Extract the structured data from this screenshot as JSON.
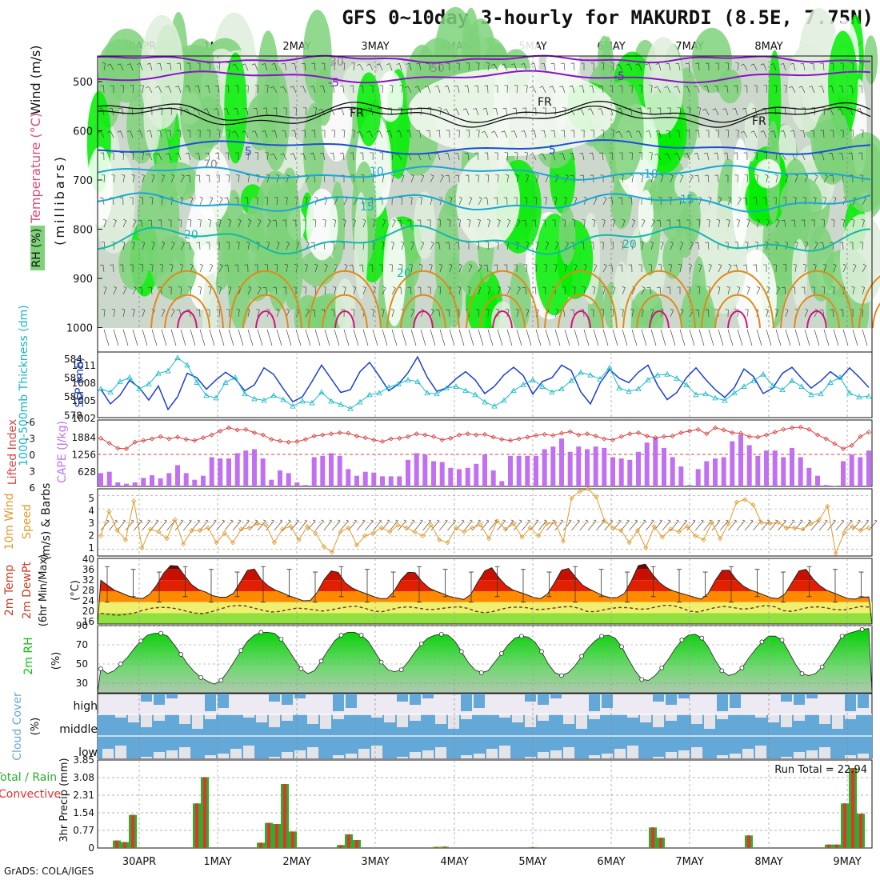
{
  "title": "GFS 0~10day 3-hourly for MAKURDI (8.5E, 7.75N)",
  "footer": "GrADS: COLA/IGES",
  "dates": [
    "30APR",
    "1MAY",
    "2MAY",
    "3MAY",
    "4MAY",
    "5MAY",
    "6MAY",
    "7MAY",
    "8MAY",
    "9MAY"
  ],
  "colors": {
    "rh_light": "#dfeedd",
    "rh_mid": "#cdd8cd",
    "rh_green": "#7ed27a",
    "rh_bright": "#00ee00",
    "temp_purple": "#8a12c8",
    "temp_blue": "#1a4fd6",
    "temp_cyan": "#1aa6d6",
    "temp_teal": "#14b8a8",
    "temp_orange": "#e08a1a",
    "temp_magenta": "#d0127a",
    "slp": "#1a3fd0",
    "thickness": "#16b8c8",
    "li": "#d84040",
    "cape": "#c070f0",
    "wind10": "#e09a2a",
    "temp2m_dark": "#7a0000",
    "temp2m_red": "#e02000",
    "temp2m_orange": "#ff8a00",
    "dewpt_yellow": "#f0f060",
    "rh2m": "#10c010",
    "cloud": "#64a8d8",
    "cloud_bg": "#eeeaf4",
    "precip_total": "#2ab02a",
    "precip_conv": "#e83030"
  },
  "panels": {
    "upper": {
      "ylabel_main": "(millibars)",
      "legend_rh": "RH (%)",
      "legend_temp": "Temperature (°C)",
      "legend_wind": "Wind (m/s)",
      "ticks": [
        "500",
        "600",
        "700",
        "800",
        "900",
        "1000"
      ],
      "contour_labels": {
        "m5a": "-5",
        "m5b": "-5",
        "fr1": "FR",
        "fr2": "FR",
        "fr3": "FR",
        "p5a": "5",
        "p5b": "5",
        "p10a": "10",
        "p10b": "10",
        "p15a": "15",
        "p15b": "15",
        "p20a": "20",
        "p20b": "20",
        "p20c": "20",
        "rh30": "30",
        "rh50": "50",
        "rh70": "70"
      }
    },
    "slp": {
      "ylabel_left": "1000-500mb Thickness (dm)",
      "ylabel_right": "SLP (mb)",
      "left_ticks": [
        "584",
        "582",
        "580",
        "578"
      ],
      "right_ticks": [
        "1011",
        "1008",
        "1005",
        "1002"
      ]
    },
    "cape": {
      "ylabel_left": "Lifted Index",
      "ylabel_right": "CAPE (J/kg)",
      "left_ticks": [
        "-6",
        "-3",
        "0",
        "3",
        "6"
      ],
      "right_ticks": [
        "1884",
        "1256",
        "628"
      ]
    },
    "wind10": {
      "ylabel": "10m Wind Speed & Barbs (m/s)",
      "ylabel_a": "10m Wind",
      "ylabel_b": "Speed",
      "ylabel_c": "(m/s) & Barbs",
      "ticks": [
        "5",
        "4",
        "3",
        "2",
        "1"
      ]
    },
    "temp2m": {
      "ylabel_a": "2m Temp",
      "ylabel_b": "2m DewPt",
      "ylabel_c": "(6hr Min/Max)",
      "ylabel_d": "(°C)",
      "ticks": [
        "40",
        "36",
        "32",
        "28",
        "24",
        "20",
        "16"
      ]
    },
    "rh2m": {
      "ylabel_a": "2m RH",
      "ylabel_b": "(%)",
      "ticks": [
        "90",
        "70",
        "50",
        "30"
      ]
    },
    "cloud": {
      "ylabel": "Cloud Cover (%)",
      "ylabel_a": "Cloud Cover",
      "ylabel_b": "(%)",
      "levels": [
        "high",
        "middle",
        "low"
      ]
    },
    "precip": {
      "ylabel_a": "Total / Rain",
      "ylabel_b": "Convective",
      "ylabel_c": "3hr Precip (mm)",
      "ticks": [
        "3.85",
        "3.08",
        "2.31",
        "1.54",
        "0.77",
        "0"
      ],
      "run_total": "Run Total = 22.94"
    }
  },
  "chart_data": [
    {
      "type": "line",
      "name": "SLP (mb)",
      "ylim": [
        1001,
        1013
      ],
      "values": [
        1006.2,
        1003.5,
        1005.1,
        1007.8,
        1006.5,
        1004.2,
        1006.8,
        1002.5,
        1004.8,
        1009.1,
        1008.3,
        1006.2,
        1007.9,
        1009.3,
        1008.1,
        1005.9,
        1007.0,
        1010.1,
        1008.9,
        1006.3,
        1003.9,
        1004.8,
        1007.6,
        1010.6,
        1008.1,
        1005.6,
        1006.1,
        1009.4,
        1011.1,
        1008.6,
        1005.9,
        1007.1,
        1009.2,
        1012.1,
        1008.4,
        1005.8,
        1006.4,
        1008.1,
        1009.4,
        1007.9,
        1005.4,
        1006.7,
        1008.8,
        1010.2,
        1008.7,
        1005.3,
        1007.6,
        1008.3,
        1010.6,
        1009.6,
        1005.7,
        1003.5,
        1007.3,
        1009.8,
        1008.2,
        1007.4,
        1009.3,
        1010.6,
        1006.9,
        1004.3,
        1005.6,
        1008.3,
        1010.1,
        1008.0,
        1006.1,
        1004.7,
        1006.5,
        1009.9,
        1008.5,
        1005.4,
        1006.4,
        1009.1,
        1010.2,
        1008.2,
        1006.4,
        1007.7,
        1009.4,
        1008.1,
        1010.1,
        1008.4,
        1006.5
      ]
    },
    {
      "type": "line",
      "name": "1000-500mb Thickness (dm)",
      "ylim": [
        577.5,
        585.5
      ],
      "values": [
        581.0,
        580.6,
        581.9,
        582.4,
        581.0,
        581.6,
        582.9,
        583.2,
        584.8,
        583.9,
        581.8,
        580.2,
        579.9,
        581.8,
        582.4,
        580.4,
        579.8,
        579.6,
        580.2,
        579.7,
        578.9,
        579.5,
        579.3,
        580.6,
        579.5,
        579.1,
        578.6,
        579.4,
        580.3,
        580.5,
        581.2,
        581.6,
        582.1,
        581.9,
        580.5,
        580.4,
        581.1,
        581.3,
        580.8,
        580.3,
        579.4,
        578.9,
        579.6,
        580.8,
        581.5,
        582.1,
        581.3,
        580.6,
        581.0,
        582.0,
        583.0,
        582.7,
        582.2,
        583.6,
        581.1,
        580.7,
        581.0,
        582.1,
        582.7,
        582.8,
        582.3,
        581.5,
        580.3,
        580.4,
        579.9,
        579.6,
        580.5,
        581.3,
        582.0,
        582.8,
        581.4,
        580.9,
        582.0,
        581.3,
        580.3,
        580.4,
        581.8,
        582.4,
        580.5,
        580.0,
        580.1
      ]
    },
    {
      "type": "bar",
      "name": "CAPE (J/kg)",
      "ylim": [
        0,
        2500
      ],
      "values": [
        500,
        550,
        150,
        100,
        150,
        320,
        420,
        300,
        500,
        800,
        500,
        250,
        400,
        1100,
        1050,
        1050,
        1250,
        1350,
        1400,
        1050,
        250,
        600,
        500,
        150,
        50,
        1100,
        1150,
        1250,
        1150,
        650,
        400,
        550,
        520,
        380,
        380,
        380,
        1000,
        1250,
        1200,
        950,
        920,
        700,
        650,
        700,
        850,
        1200,
        600,
        200,
        1150,
        1150,
        1150,
        1150,
        1400,
        1500,
        1800,
        1300,
        1500,
        1400,
        1500,
        1450,
        1100,
        1050,
        1000,
        1300,
        1650,
        1850,
        1450,
        1100,
        750,
        50,
        650,
        950,
        1050,
        1100,
        1700,
        1950,
        1550,
        1150,
        1350,
        1350,
        1100,
        1450,
        1100,
        700,
        400,
        50,
        10,
        950,
        1200,
        1100,
        1350
      ]
    },
    {
      "type": "line",
      "name": "Lifted Index",
      "ylim": [
        6,
        -6
      ],
      "values": [
        -2.7,
        -1.8,
        -0.9,
        -0.8,
        -2.0,
        -2.3,
        -2.6,
        -3.0,
        -2.6,
        -2.9,
        -2.5,
        -2.3,
        -2.8,
        -3.3,
        -4.0,
        -4.6,
        -4.2,
        -4.3,
        -3.7,
        -3.3,
        -2.5,
        -2.2,
        -2.0,
        -2.1,
        -2.5,
        -3.1,
        -3.3,
        -3.5,
        -3.7,
        -3.6,
        -3.1,
        -2.8,
        -2.4,
        -2.1,
        -2.6,
        -2.7,
        -3.0,
        -3.5,
        -3.3,
        -3.0,
        -2.4,
        -2.7,
        -3.3,
        -3.5,
        -3.3,
        -3.4,
        -2.9,
        -2.5,
        -2.3,
        -2.6,
        -2.9,
        -3.2,
        -3.4,
        -3.2,
        -3.6,
        -3.9,
        -3.3,
        -3.5,
        -3.1,
        -2.6,
        -2.4,
        -3.0,
        -3.5,
        -3.7,
        -3.1,
        -2.8,
        -3.0,
        -3.1,
        -3.7,
        -4.0,
        -4.3,
        -3.5,
        -4.6,
        -4.2,
        -3.7,
        -3.6,
        -3.0,
        -2.9,
        -3.3,
        -3.8,
        -4.3,
        -4.6,
        -4.7,
        -4.3,
        -3.3,
        -2.6,
        -1.7,
        -0.8,
        -1.4,
        -3.0,
        -3.8
      ]
    },
    {
      "type": "line",
      "name": "10m Wind Speed (m/s)",
      "ylim": [
        0.5,
        5.5
      ],
      "values": [
        2.0,
        3.8,
        2.4,
        1.7,
        4.6,
        1.1,
        2.5,
        2.3,
        1.8,
        3.2,
        1.4,
        2.4,
        2.4,
        2.6,
        1.5,
        2.2,
        1.5,
        2.5,
        2.6,
        2.9,
        2.8,
        1.5,
        2.5,
        2.7,
        1.7,
        2.7,
        2.2,
        1.2,
        0.8,
        2.3,
        2.6,
        1.3,
        2.0,
        2.2,
        2.6,
        2.3,
        2.8,
        2.6,
        2.3,
        2.0,
        2.8,
        1.7,
        1.5,
        2.6,
        2.3,
        2.6,
        2.8,
        1.8,
        3.1,
        2.5,
        2.9,
        1.9,
        2.6,
        2.0,
        2.9,
        3.0,
        1.6,
        4.8,
        5.3,
        5.5,
        4.9,
        3.1,
        2.6,
        2.4,
        1.5,
        2.4,
        1.1,
        2.7,
        1.9,
        2.5,
        2.3,
        2.7,
        2.0,
        1.7,
        3.0,
        1.8,
        2.9,
        4.5,
        4.7,
        4.3,
        3.0,
        2.9,
        3.0,
        2.6,
        2.6,
        2.5,
        2.9,
        3.2,
        4.2,
        0.7,
        2.2,
        2.7,
        2.4,
        2.6
      ]
    },
    {
      "type": "area",
      "name": "2m Temp (°C)",
      "ylim": [
        16,
        40
      ],
      "values": [
        32.0,
        30.1,
        28.3,
        27.3,
        26.2,
        25.6,
        25.3,
        26.9,
        30.2,
        34.6,
        37.4,
        37.2,
        33.7,
        30.4,
        28.6,
        27.7,
        26.4,
        25.8,
        25.8,
        27.2,
        31.3,
        35.6,
        36.1,
        32.2,
        29.9,
        28.4,
        27.4,
        26.3,
        25.4,
        24.5,
        24.6,
        27.6,
        32.3,
        35.4,
        34.9,
        31.1,
        29.2,
        28.0,
        27.1,
        26.1,
        25.3,
        25.3,
        27.9,
        32.2,
        34.9,
        34.8,
        31.5,
        29.2,
        28.0,
        27.1,
        26.0,
        25.5,
        25.0,
        26.8,
        31.4,
        35.4,
        36.6,
        33.0,
        30.2,
        28.5,
        27.6,
        26.7,
        25.7,
        25.3,
        27.0,
        31.2,
        35.7,
        36.3,
        33.1,
        30.2,
        28.8,
        27.5,
        26.3,
        25.6,
        25.7,
        27.2,
        31.8,
        37.4,
        37.9,
        34.2,
        31.2,
        29.3,
        28.1,
        27.3,
        26.6,
        25.8,
        25.1,
        27.2,
        31.9,
        35.6,
        35.7,
        32.3,
        29.9,
        28.5,
        27.6,
        26.6,
        25.6,
        25.3,
        27.0,
        31.2,
        35.4,
        36.0,
        32.5,
        30.0,
        28.3,
        27.3,
        26.3,
        25.3,
        25.1,
        25.8,
        25.9
      ]
    },
    {
      "type": "line",
      "name": "2m DewPt (°C)",
      "ylim": [
        16,
        40
      ],
      "values": [
        19.9,
        19.5,
        19.2,
        19.5,
        20.1,
        21.1,
        21.8,
        22.1,
        22.0,
        21.5,
        20.7,
        20.0,
        19.8,
        20.5,
        21.5,
        22.4,
        22.8,
        22.6,
        21.8,
        21.0,
        20.4,
        20.6,
        21.3,
        21.8,
        21.6,
        21.2,
        20.7,
        21.2,
        21.8,
        22.3,
        22.5,
        21.7,
        20.7,
        20.5,
        21.3,
        22.0,
        22.3,
        21.9,
        21.4,
        21.3,
        21.7,
        22.1,
        22.3,
        21.7,
        20.6,
        20.1,
        20.6,
        21.5,
        22.1,
        22.2,
        21.9,
        21.3,
        21.4,
        21.8,
        22.2,
        22.4,
        21.8,
        20.6,
        20.5,
        21.2,
        21.8,
        22.1,
        21.9,
        21.4,
        21.5,
        22.2,
        22.8,
        22.8,
        21.9,
        20.7,
        20.4,
        21.2,
        22.0,
        22.4,
        22.1,
        21.5,
        21.6,
        22.3,
        22.8,
        22.3,
        20.9,
        20.6,
        21.4,
        22.1,
        22.3,
        21.9,
        21.3,
        21.1,
        21.7,
        22.4,
        22.2
      ]
    },
    {
      "type": "area",
      "name": "2m RH (%)",
      "ylim": [
        20,
        90
      ],
      "values": [
        45,
        40,
        43,
        50,
        57,
        66,
        74,
        80,
        82,
        82,
        79,
        70,
        60,
        50,
        42,
        36,
        32,
        29,
        33,
        42,
        53,
        64,
        74,
        80,
        83,
        83,
        82,
        76,
        66,
        55,
        45,
        40,
        43,
        53,
        64,
        74,
        80,
        83,
        83,
        80,
        74,
        63,
        52,
        44,
        42,
        44,
        52,
        62,
        71,
        77,
        80,
        81,
        80,
        74,
        63,
        52,
        44,
        41,
        43,
        52,
        61,
        70,
        77,
        79,
        78,
        73,
        63,
        50,
        41,
        38,
        41,
        48,
        58,
        67,
        74,
        79,
        80,
        77,
        68,
        55,
        43,
        34,
        33,
        38,
        46,
        55,
        66,
        75,
        80,
        81,
        77,
        67,
        54,
        43,
        38,
        40,
        46,
        56,
        65,
        73,
        79,
        79,
        75,
        63,
        50,
        40,
        38,
        40,
        47,
        57,
        68,
        79,
        82,
        84,
        86,
        87
      ]
    },
    {
      "type": "bar",
      "name": "3hr Precip Total (mm)",
      "ylim": [
        0,
        3.85
      ],
      "values": [
        0.0,
        0.0,
        0.33,
        0.26,
        1.45,
        0.0,
        0.0,
        0.0,
        0.0,
        0.0,
        0.0,
        0.0,
        1.95,
        3.1,
        0.0,
        0.0,
        0.0,
        0.0,
        0.0,
        0.0,
        0.23,
        1.1,
        1.05,
        2.8,
        0.72,
        0.0,
        0.0,
        0.0,
        0.0,
        0.0,
        0.13,
        0.6,
        0.35,
        0.0,
        0.0,
        0.0,
        0.0,
        0.0,
        0.0,
        0.0,
        0.0,
        0.0,
        0.05,
        0.06,
        0.0,
        0.0,
        0.0,
        0.0,
        0.0,
        0.0,
        0.0,
        0.0,
        0.0,
        0.0,
        0.04,
        0.0,
        0.0,
        0.0,
        0.0,
        0.0,
        0.0,
        0.0,
        0.0,
        0.0,
        0.0,
        0.0,
        0.0,
        0.0,
        0.0,
        0.9,
        0.45,
        0.0,
        0.0,
        0.0,
        0.0,
        0.0,
        0.0,
        0.0,
        0.0,
        0.0,
        0.0,
        0.55,
        0.0,
        0.0,
        0.0,
        0.0,
        0.0,
        0.0,
        0.0,
        0.0,
        0.0,
        0.15,
        0.15,
        1.95,
        3.5,
        1.5,
        0.0
      ]
    }
  ]
}
